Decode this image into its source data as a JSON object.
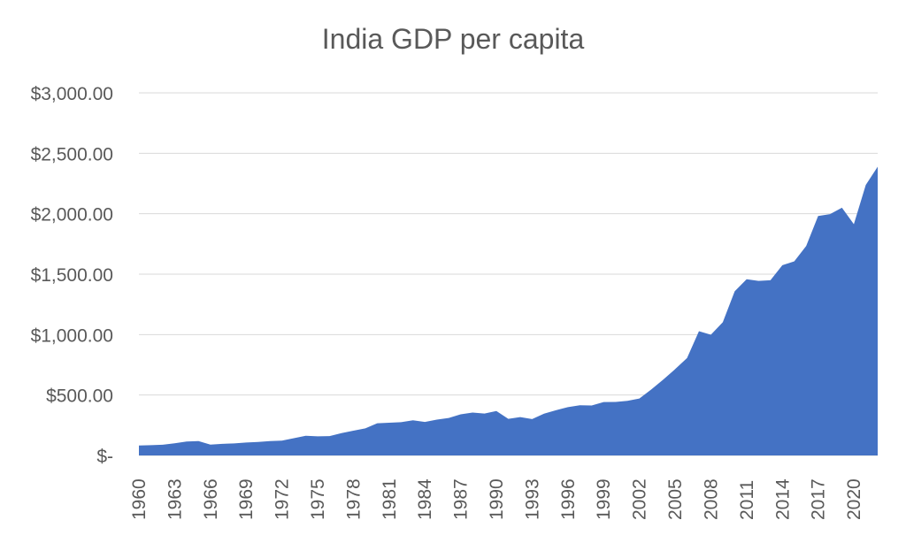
{
  "chart_data": {
    "type": "area",
    "title": "India GDP per capita",
    "xlabel": "",
    "ylabel": "",
    "ylim": [
      0,
      3000
    ],
    "y_ticks": [
      0,
      500,
      1000,
      1500,
      2000,
      2500,
      3000
    ],
    "y_tick_labels": [
      "$-",
      "$500.00",
      "$1,000.00",
      "$1,500.00",
      "$2,000.00",
      "$2,500.00",
      "$3,000.00"
    ],
    "x_tick_labels": [
      "1960",
      "1963",
      "1966",
      "1969",
      "1972",
      "1975",
      "1978",
      "1981",
      "1984",
      "1987",
      "1990",
      "1993",
      "1996",
      "1999",
      "2002",
      "2005",
      "2008",
      "2011",
      "2014",
      "2017",
      "2020"
    ],
    "grid": true,
    "legend": "none",
    "fill_color": "#4472c4",
    "x": [
      1960,
      1961,
      1962,
      1963,
      1964,
      1965,
      1966,
      1967,
      1968,
      1969,
      1970,
      1971,
      1972,
      1973,
      1974,
      1975,
      1976,
      1977,
      1978,
      1979,
      1980,
      1981,
      1982,
      1983,
      1984,
      1985,
      1986,
      1987,
      1988,
      1989,
      1990,
      1991,
      1992,
      1993,
      1994,
      1995,
      1996,
      1997,
      1998,
      1999,
      2000,
      2001,
      2002,
      2003,
      2004,
      2005,
      2006,
      2007,
      2008,
      2009,
      2010,
      2011,
      2012,
      2013,
      2014,
      2015,
      2016,
      2017,
      2018,
      2019,
      2020,
      2021,
      2022
    ],
    "values": [
      82,
      85,
      89,
      101,
      115,
      119,
      90,
      96,
      100,
      107,
      112,
      119,
      123,
      143,
      163,
      158,
      160,
      185,
      205,
      224,
      266,
      271,
      275,
      291,
      277,
      296,
      310,
      340,
      355,
      347,
      368,
      303,
      317,
      301,
      346,
      374,
      400,
      415,
      413,
      442,
      443,
      452,
      471,
      546,
      627,
      714,
      806,
      1028,
      999,
      1102,
      1358,
      1458,
      1444,
      1450,
      1574,
      1606,
      1733,
      1981,
      1997,
      2050,
      1913,
      2238,
      2389
    ]
  }
}
